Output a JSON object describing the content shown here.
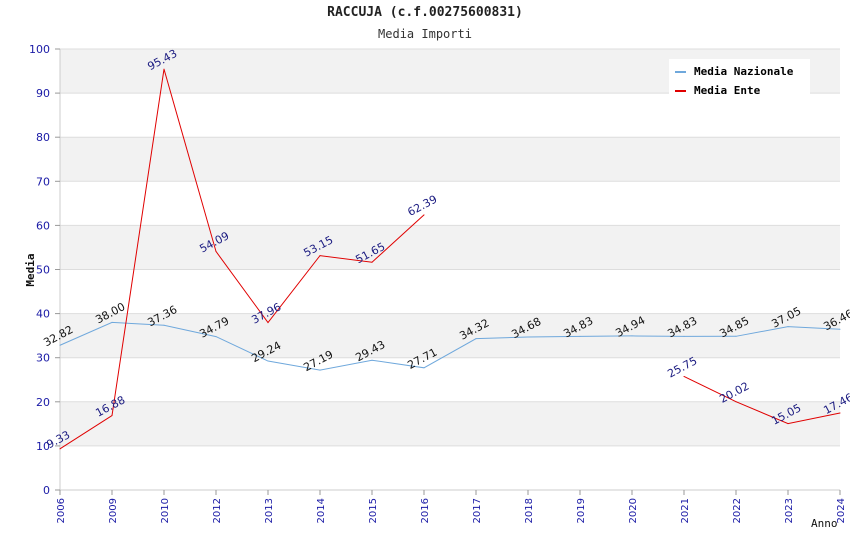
{
  "chart_data": {
    "type": "line",
    "title": "RACCUJA (c.f.00275600831)",
    "subtitle": "Media Importi",
    "xlabel": "Anno",
    "ylabel": "Media",
    "ylim": [
      0,
      100
    ],
    "yticks": [
      0,
      10,
      20,
      30,
      40,
      50,
      60,
      70,
      80,
      90,
      100
    ],
    "categories": [
      "2006",
      "2009",
      "2010",
      "2012",
      "2013",
      "2014",
      "2015",
      "2016",
      "2017",
      "2018",
      "2019",
      "2020",
      "2021",
      "2022",
      "2023",
      "2024"
    ],
    "series": [
      {
        "name": "Media Nazionale",
        "color": "#6fa8dc",
        "values": [
          32.82,
          38.0,
          37.36,
          34.79,
          29.24,
          27.19,
          29.43,
          27.71,
          34.32,
          34.68,
          34.83,
          34.94,
          34.83,
          34.85,
          37.05,
          36.46
        ],
        "labels": [
          "32.82",
          "38.00",
          "37.36",
          "34.79",
          "29.24",
          "27.19",
          "29.43",
          "27.71",
          "34.32",
          "34.68",
          "34.83",
          "34.94",
          "34.83",
          "34.85",
          "37.05",
          "36.46"
        ]
      },
      {
        "name": "Media Ente",
        "color": "#e00000",
        "values": [
          9.33,
          16.88,
          95.43,
          54.09,
          37.96,
          53.15,
          51.65,
          62.39,
          null,
          null,
          null,
          null,
          25.75,
          20.02,
          15.05,
          17.46
        ],
        "labels": [
          "9.33",
          "16.88",
          "95.43",
          "54.09",
          "37.96",
          "53.15",
          "51.65",
          "62.39",
          null,
          null,
          null,
          null,
          "25.75",
          "20.02",
          "15.05",
          "17.46"
        ]
      }
    ],
    "grid": true,
    "legend_position": "top-right"
  }
}
